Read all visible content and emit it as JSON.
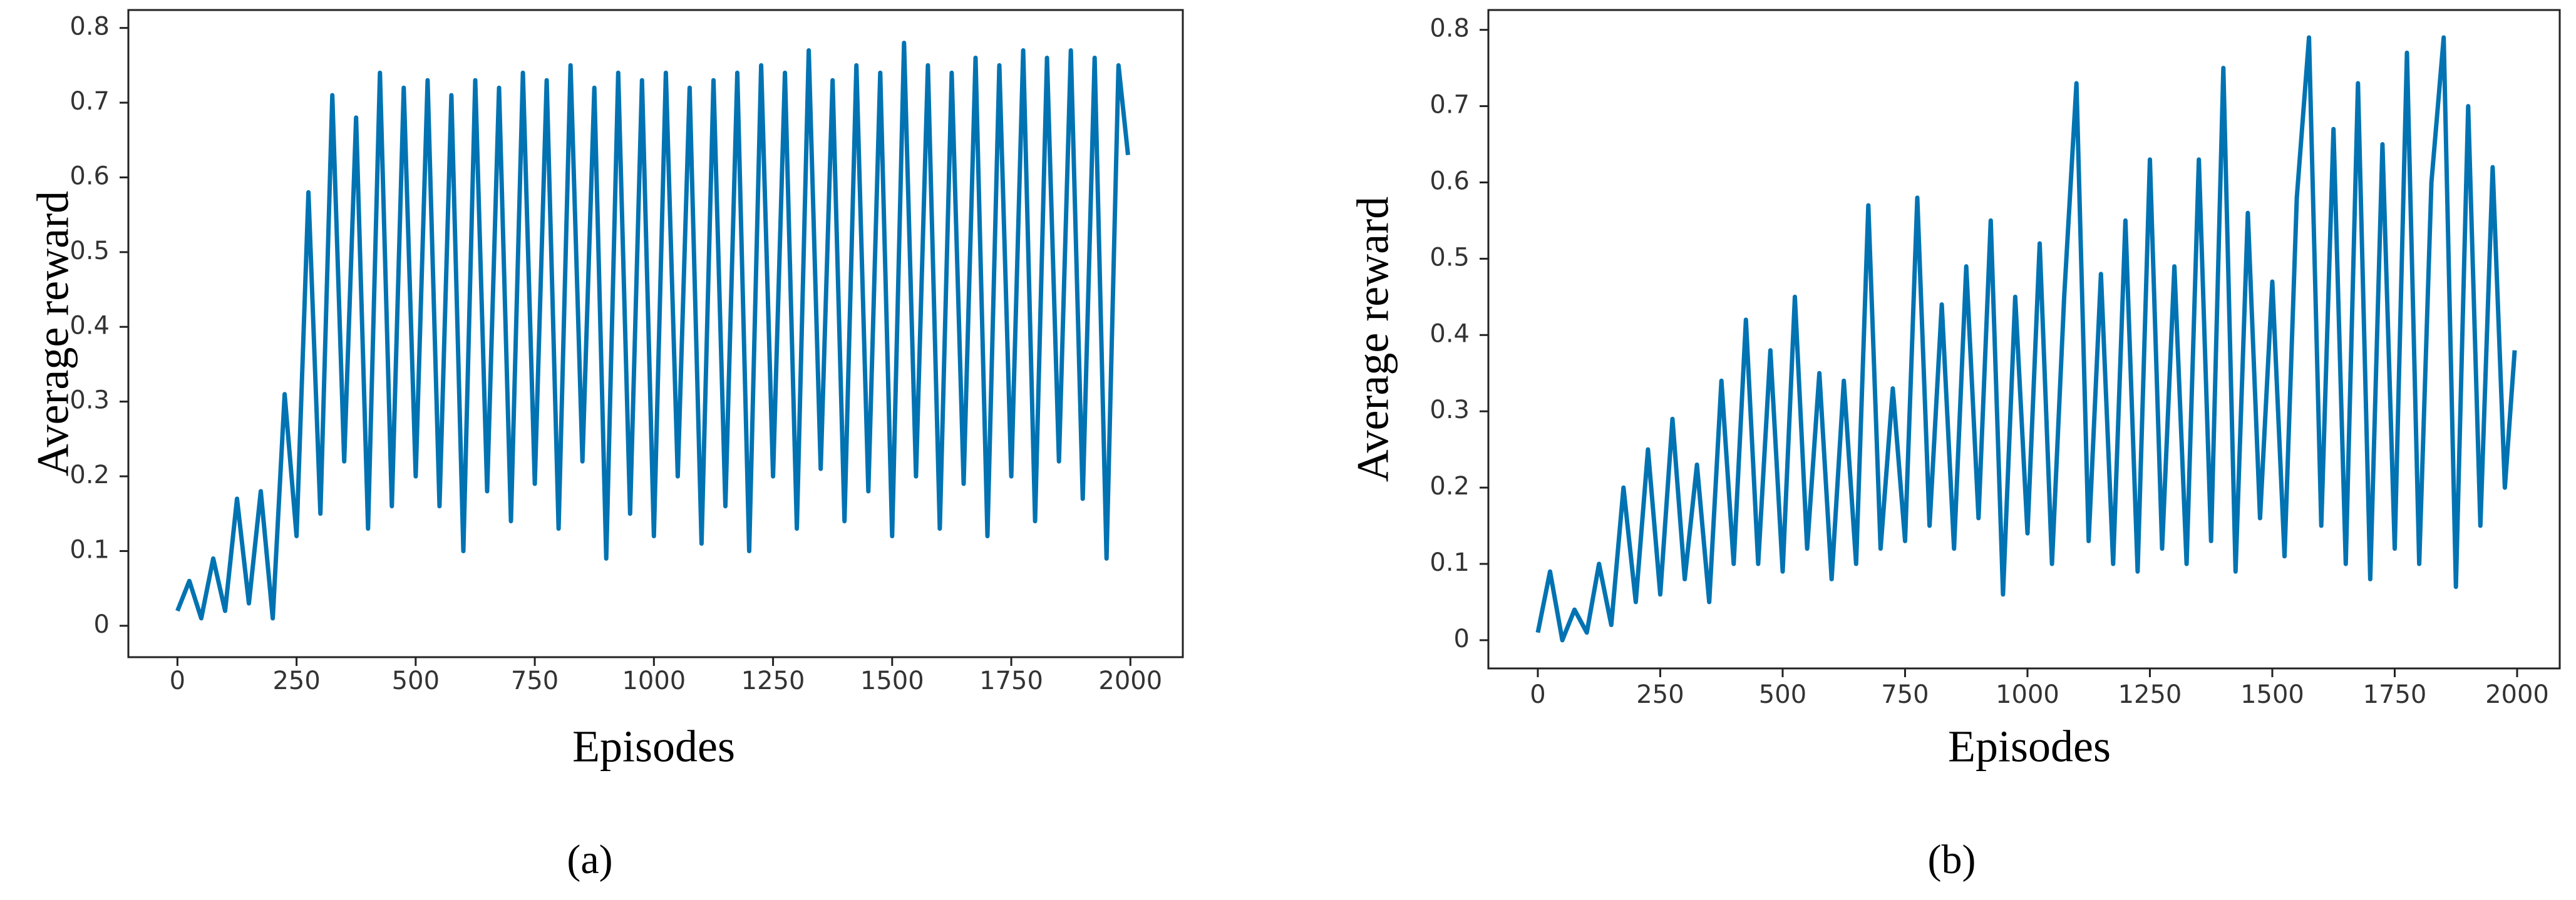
{
  "chart_data": [
    {
      "type": "line",
      "color": "#0173b2",
      "x_label": "Episodes",
      "y_label": "Average reward",
      "caption": "(a)",
      "x": [
        0,
        25,
        50,
        75,
        100,
        125,
        150,
        175,
        200,
        225,
        250,
        275,
        300,
        325,
        350,
        375,
        400,
        425,
        450,
        475,
        500,
        525,
        550,
        575,
        600,
        625,
        650,
        675,
        700,
        725,
        750,
        775,
        800,
        825,
        850,
        875,
        900,
        925,
        950,
        975,
        1000,
        1025,
        1050,
        1075,
        1100,
        1125,
        1150,
        1175,
        1200,
        1225,
        1250,
        1275,
        1300,
        1325,
        1350,
        1375,
        1400,
        1425,
        1450,
        1475,
        1500,
        1525,
        1550,
        1575,
        1600,
        1625,
        1650,
        1675,
        1700,
        1725,
        1750,
        1775,
        1800,
        1825,
        1850,
        1875,
        1900,
        1925,
        1950,
        1975,
        1995
      ],
      "values": [
        0.02,
        0.06,
        0.01,
        0.09,
        0.02,
        0.17,
        0.03,
        0.18,
        0.01,
        0.31,
        0.12,
        0.58,
        0.15,
        0.71,
        0.22,
        0.68,
        0.13,
        0.74,
        0.16,
        0.72,
        0.2,
        0.73,
        0.16,
        0.71,
        0.1,
        0.73,
        0.18,
        0.72,
        0.14,
        0.74,
        0.19,
        0.73,
        0.13,
        0.75,
        0.22,
        0.72,
        0.09,
        0.74,
        0.15,
        0.73,
        0.12,
        0.74,
        0.2,
        0.72,
        0.11,
        0.73,
        0.16,
        0.74,
        0.1,
        0.75,
        0.2,
        0.74,
        0.13,
        0.77,
        0.21,
        0.73,
        0.14,
        0.75,
        0.18,
        0.74,
        0.12,
        0.78,
        0.2,
        0.75,
        0.13,
        0.74,
        0.19,
        0.76,
        0.12,
        0.75,
        0.2,
        0.77,
        0.14,
        0.76,
        0.22,
        0.77,
        0.17,
        0.76,
        0.09,
        0.75,
        0.63
      ],
      "xlim": [
        -103,
        2110
      ],
      "ylim": [
        -0.042,
        0.824
      ],
      "xticks": [
        0,
        250,
        500,
        750,
        1000,
        1250,
        1500,
        1750,
        2000
      ],
      "yticks": [
        0,
        0.1,
        0.2,
        0.3,
        0.4,
        0.5,
        0.6,
        0.7,
        0.8
      ],
      "grid": false
    },
    {
      "type": "line",
      "color": "#0173b2",
      "x_label": "Episodes",
      "y_label": "Average reward",
      "caption": "(b)",
      "x": [
        0,
        25,
        50,
        75,
        100,
        125,
        150,
        175,
        200,
        225,
        250,
        275,
        300,
        325,
        350,
        375,
        400,
        425,
        450,
        475,
        500,
        525,
        550,
        575,
        600,
        625,
        650,
        675,
        700,
        725,
        750,
        775,
        800,
        825,
        850,
        875,
        900,
        925,
        950,
        975,
        1000,
        1025,
        1050,
        1075,
        1100,
        1125,
        1150,
        1175,
        1200,
        1225,
        1250,
        1275,
        1300,
        1325,
        1350,
        1375,
        1400,
        1425,
        1450,
        1475,
        1500,
        1525,
        1550,
        1575,
        1600,
        1625,
        1650,
        1675,
        1700,
        1725,
        1750,
        1775,
        1800,
        1825,
        1850,
        1875,
        1900,
        1925,
        1950,
        1975,
        1995
      ],
      "values": [
        0.01,
        0.09,
        0,
        0.04,
        0.01,
        0.1,
        0.02,
        0.2,
        0.05,
        0.25,
        0.06,
        0.29,
        0.08,
        0.23,
        0.05,
        0.34,
        0.1,
        0.42,
        0.1,
        0.38,
        0.09,
        0.45,
        0.12,
        0.35,
        0.08,
        0.34,
        0.1,
        0.57,
        0.12,
        0.33,
        0.13,
        0.58,
        0.15,
        0.44,
        0.12,
        0.49,
        0.16,
        0.55,
        0.06,
        0.45,
        0.14,
        0.52,
        0.1,
        0.45,
        0.73,
        0.13,
        0.48,
        0.1,
        0.55,
        0.09,
        0.63,
        0.12,
        0.49,
        0.1,
        0.63,
        0.13,
        0.75,
        0.09,
        0.56,
        0.16,
        0.47,
        0.11,
        0.58,
        0.79,
        0.15,
        0.67,
        0.1,
        0.73,
        0.08,
        0.65,
        0.12,
        0.77,
        0.1,
        0.6,
        0.79,
        0.07,
        0.7,
        0.15,
        0.62,
        0.2,
        0.38
      ],
      "xlim": [
        -101,
        2087
      ],
      "ylim": [
        -0.037,
        0.826
      ],
      "xticks": [
        0,
        250,
        500,
        750,
        1000,
        1250,
        1500,
        1750,
        2000
      ],
      "yticks": [
        0,
        0.1,
        0.2,
        0.3,
        0.4,
        0.5,
        0.6,
        0.7,
        0.8
      ],
      "grid": false
    }
  ]
}
